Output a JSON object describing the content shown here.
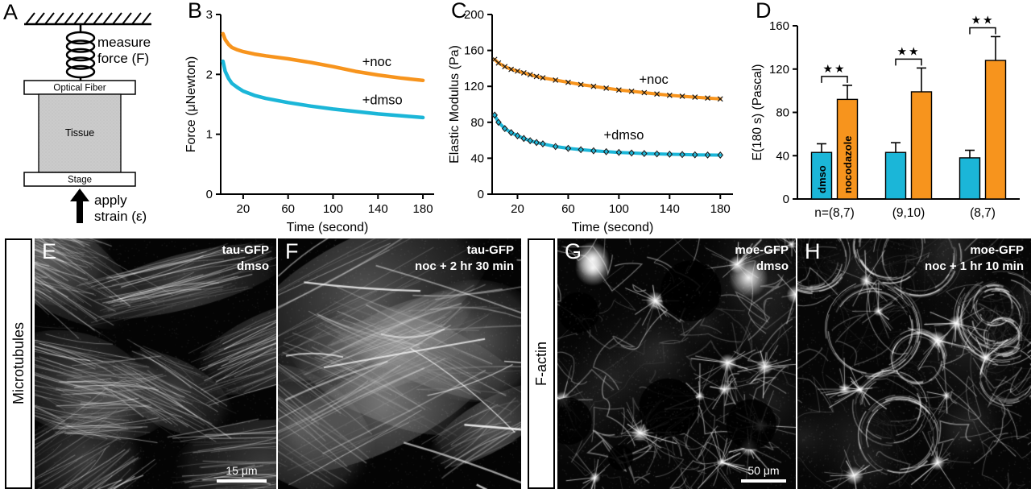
{
  "apparatus": {
    "panel_label": "A",
    "measure_line1": "measure",
    "measure_line2": "force (F)",
    "optical_fiber_label": "Optical Fiber",
    "tissue_label": "Tissue",
    "stage_label": "Stage",
    "apply_line1": "apply",
    "apply_line2": "strain (ε)"
  },
  "chart_data": [
    {
      "panel_label": "B",
      "type": "line",
      "xlabel": "Time (second)",
      "ylabel": "Force (μNewton)",
      "xlim": [
        0,
        190
      ],
      "ylim": [
        0,
        3
      ],
      "xticks": [
        20,
        60,
        100,
        140,
        180
      ],
      "yticks": [
        0,
        1,
        2,
        3
      ],
      "grid": false,
      "legend_position": "inline-right",
      "series": [
        {
          "name": "+noc",
          "color": "#F7941D",
          "x": [
            2,
            4,
            7,
            10,
            15,
            20,
            30,
            40,
            60,
            80,
            100,
            120,
            140,
            160,
            180
          ],
          "y": [
            2.68,
            2.58,
            2.5,
            2.45,
            2.41,
            2.38,
            2.34,
            2.31,
            2.26,
            2.2,
            2.13,
            2.05,
            1.99,
            1.94,
            1.9
          ],
          "label_pos": [
            126,
            2.14
          ]
        },
        {
          "name": "+dmso",
          "color": "#1BB6D8",
          "x": [
            2,
            4,
            7,
            10,
            15,
            20,
            30,
            40,
            60,
            80,
            100,
            120,
            140,
            160,
            180
          ],
          "y": [
            2.22,
            2.05,
            1.93,
            1.85,
            1.78,
            1.72,
            1.65,
            1.6,
            1.53,
            1.47,
            1.42,
            1.38,
            1.34,
            1.31,
            1.28
          ],
          "label_pos": [
            126,
            1.5
          ]
        }
      ]
    },
    {
      "panel_label": "C",
      "type": "line",
      "xlabel": "Time (second)",
      "ylabel": "Elastic Modulus (Pa)",
      "xlim": [
        0,
        190
      ],
      "ylim": [
        0,
        200
      ],
      "xticks": [
        20,
        60,
        100,
        140,
        180
      ],
      "yticks": [
        0,
        40,
        80,
        120,
        160,
        200
      ],
      "grid": false,
      "legend_position": "inline-right",
      "series": [
        {
          "name": "+noc",
          "color": "#F7941D",
          "marker": "x",
          "x": [
            2,
            5,
            10,
            15,
            20,
            25,
            30,
            35,
            40,
            50,
            60,
            70,
            80,
            90,
            100,
            110,
            120,
            130,
            140,
            150,
            160,
            170,
            180
          ],
          "y": [
            150,
            146,
            142,
            139,
            137,
            135,
            133,
            131,
            129.5,
            127,
            124.5,
            122,
            120,
            118,
            116,
            114.5,
            113,
            111.5,
            110,
            109,
            108,
            107,
            106
          ],
          "label_pos": [
            116,
            123
          ]
        },
        {
          "name": "+dmso",
          "color": "#1BB6D8",
          "marker": "diamond",
          "x": [
            2,
            5,
            10,
            15,
            20,
            25,
            30,
            35,
            40,
            50,
            60,
            70,
            80,
            90,
            100,
            110,
            120,
            130,
            140,
            150,
            160,
            170,
            180
          ],
          "y": [
            88,
            80,
            73,
            68.5,
            65,
            62,
            59.5,
            57.5,
            56,
            53,
            51,
            49.5,
            48.3,
            47.3,
            46.5,
            45.8,
            45.2,
            44.8,
            44.4,
            44.1,
            43.8,
            43.6,
            43.5
          ],
          "label_pos": [
            88,
            61
          ]
        }
      ]
    },
    {
      "panel_label": "D",
      "type": "bar",
      "ylabel": "E(180 s) (Pascal)",
      "ylim": [
        0,
        160
      ],
      "yticks": [
        0,
        40,
        80,
        120,
        160
      ],
      "categories": [
        "n=(8,7)",
        "(9,10)",
        "(8,7)"
      ],
      "series": [
        {
          "name": "dmso",
          "color": "#1BB6D8",
          "values": [
            43,
            43,
            38
          ],
          "errors": [
            8,
            9,
            7
          ]
        },
        {
          "name": "nocodazole",
          "color": "#F7941D",
          "values": [
            92,
            99,
            128
          ],
          "errors": [
            13,
            22,
            22
          ]
        }
      ],
      "significance": "★★"
    }
  ],
  "micrographs": {
    "group_labels": [
      "Microtubules",
      "F-actin"
    ],
    "panels": [
      {
        "letter": "E",
        "caption_line1": "tau-GFP",
        "caption_line2": "dmso",
        "scale_bar": "15 μm"
      },
      {
        "letter": "F",
        "caption_line1": "tau-GFP",
        "caption_line2": "noc + 2 hr 30 min",
        "scale_bar": ""
      },
      {
        "letter": "G",
        "caption_line1": "moe-GFP",
        "caption_line2": "dmso",
        "scale_bar": "50 μm"
      },
      {
        "letter": "H",
        "caption_line1": "moe-GFP",
        "caption_line2": "noc + 1 hr 10 min",
        "scale_bar": ""
      }
    ]
  },
  "colors": {
    "noc_orange": "#F7941D",
    "dmso_cyan": "#1BB6D8"
  }
}
